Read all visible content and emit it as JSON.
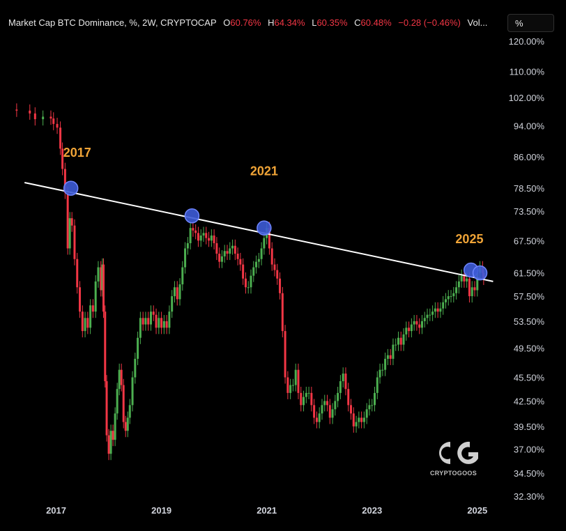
{
  "header": {
    "title": "Market Cap BTC Dominance, %, 2W, CRYPTOCAP",
    "o_label": "O",
    "o_value": "60.76%",
    "h_label": "H",
    "h_value": "64.34%",
    "l_label": "L",
    "l_value": "60.35%",
    "c_label": "C",
    "c_value": "60.48%",
    "change": "−0.28 (−0.46%)",
    "vol": "Vol..."
  },
  "unit_selector": "%",
  "logo": {
    "text": "CRYPTOGOOS"
  },
  "colors": {
    "up": "#4caf50",
    "down": "#f23645",
    "trendline": "#ffffff",
    "marker": "#3d5bd6",
    "annotation": "#f0a437"
  },
  "chart_data": {
    "type": "candlestick",
    "interval": "2W",
    "y_scale": "log",
    "yticks": [
      "120.00%",
      "110.00%",
      "102.00%",
      "94.00%",
      "86.00%",
      "78.50%",
      "73.50%",
      "67.50%",
      "61.50%",
      "57.50%",
      "53.50%",
      "49.50%",
      "45.50%",
      "42.50%",
      "39.50%",
      "37.00%",
      "34.50%",
      "32.30%"
    ],
    "ytick_values": [
      120,
      110,
      102,
      94,
      86,
      78.5,
      73.5,
      67.5,
      61.5,
      57.5,
      53.5,
      49.5,
      45.5,
      42.5,
      39.5,
      37,
      34.5,
      32.3
    ],
    "xticks": [
      "2017",
      "2019",
      "2021",
      "2023",
      "2025"
    ],
    "xtick_years": [
      2017,
      2019,
      2021,
      2023,
      2025
    ],
    "x_range": [
      2016.0,
      2025.4
    ],
    "ylim": [
      32,
      125
    ],
    "series": [
      {
        "values": [
          [
            2016.0,
            98.5
          ],
          [
            2016.25,
            98.2
          ],
          [
            2016.5,
            97.4
          ],
          [
            2016.6,
            95.8
          ],
          [
            2016.75,
            96.5
          ],
          [
            2016.9,
            96.0
          ],
          [
            2016.95,
            94.5
          ],
          [
            2017.02,
            93.5
          ],
          [
            2017.08,
            88.0
          ],
          [
            2017.12,
            83.0
          ],
          [
            2017.17,
            77.5
          ],
          [
            2017.22,
            66.0
          ],
          [
            2017.26,
            72.0
          ],
          [
            2017.3,
            70.5
          ],
          [
            2017.35,
            64.0
          ],
          [
            2017.4,
            59.0
          ],
          [
            2017.45,
            55.0
          ],
          [
            2017.5,
            52.0
          ],
          [
            2017.55,
            54.0
          ],
          [
            2017.6,
            52.5
          ],
          [
            2017.65,
            56.0
          ],
          [
            2017.7,
            55.0
          ],
          [
            2017.75,
            60.0
          ],
          [
            2017.8,
            62.5
          ],
          [
            2017.85,
            58.5
          ],
          [
            2017.88,
            63.0
          ],
          [
            2017.9,
            55.0
          ],
          [
            2017.93,
            45.0
          ],
          [
            2017.96,
            38.5
          ],
          [
            2018.0,
            36.5
          ],
          [
            2018.04,
            39.0
          ],
          [
            2018.08,
            38.0
          ],
          [
            2018.12,
            41.0
          ],
          [
            2018.16,
            44.0
          ],
          [
            2018.2,
            46.5
          ],
          [
            2018.24,
            44.5
          ],
          [
            2018.28,
            40.0
          ],
          [
            2018.32,
            39.0
          ],
          [
            2018.36,
            40.5
          ],
          [
            2018.4,
            42.0
          ],
          [
            2018.45,
            45.5
          ],
          [
            2018.5,
            48.0
          ],
          [
            2018.55,
            51.0
          ],
          [
            2018.6,
            54.0
          ],
          [
            2018.65,
            53.0
          ],
          [
            2018.7,
            54.0
          ],
          [
            2018.75,
            53.0
          ],
          [
            2018.8,
            55.0
          ],
          [
            2018.85,
            54.5
          ],
          [
            2018.9,
            52.5
          ],
          [
            2018.95,
            54.0
          ],
          [
            2019.0,
            52.5
          ],
          [
            2019.05,
            53.5
          ],
          [
            2019.1,
            52.5
          ],
          [
            2019.15,
            55.0
          ],
          [
            2019.2,
            57.5
          ],
          [
            2019.25,
            59.0
          ],
          [
            2019.3,
            57.0
          ],
          [
            2019.35,
            59.5
          ],
          [
            2019.4,
            62.5
          ],
          [
            2019.45,
            66.0
          ],
          [
            2019.5,
            67.0
          ],
          [
            2019.55,
            70.0
          ],
          [
            2019.6,
            69.5
          ],
          [
            2019.65,
            69.0
          ],
          [
            2019.7,
            67.5
          ],
          [
            2019.75,
            68.5
          ],
          [
            2019.8,
            69.0
          ],
          [
            2019.85,
            68.0
          ],
          [
            2019.9,
            67.5
          ],
          [
            2019.95,
            68.5
          ],
          [
            2020.0,
            67.0
          ],
          [
            2020.05,
            65.0
          ],
          [
            2020.1,
            63.5
          ],
          [
            2020.15,
            64.5
          ],
          [
            2020.2,
            65.5
          ],
          [
            2020.25,
            65.0
          ],
          [
            2020.3,
            66.0
          ],
          [
            2020.35,
            66.5
          ],
          [
            2020.4,
            65.0
          ],
          [
            2020.45,
            64.0
          ],
          [
            2020.5,
            63.0
          ],
          [
            2020.55,
            60.5
          ],
          [
            2020.6,
            59.0
          ],
          [
            2020.65,
            59.0
          ],
          [
            2020.7,
            61.0
          ],
          [
            2020.75,
            62.5
          ],
          [
            2020.8,
            63.5
          ],
          [
            2020.85,
            64.0
          ],
          [
            2020.9,
            66.0
          ],
          [
            2020.95,
            68.0
          ],
          [
            2021.0,
            70.0
          ],
          [
            2021.05,
            66.0
          ],
          [
            2021.1,
            63.0
          ],
          [
            2021.15,
            62.0
          ],
          [
            2021.2,
            60.5
          ],
          [
            2021.25,
            58.0
          ],
          [
            2021.3,
            52.0
          ],
          [
            2021.35,
            45.5
          ],
          [
            2021.4,
            43.5
          ],
          [
            2021.45,
            44.5
          ],
          [
            2021.5,
            44.5
          ],
          [
            2021.55,
            46.5
          ],
          [
            2021.6,
            43.5
          ],
          [
            2021.65,
            42.0
          ],
          [
            2021.7,
            43.0
          ],
          [
            2021.75,
            43.5
          ],
          [
            2021.8,
            43.5
          ],
          [
            2021.85,
            42.0
          ],
          [
            2021.9,
            40.5
          ],
          [
            2021.95,
            40.0
          ],
          [
            2022.0,
            41.0
          ],
          [
            2022.05,
            42.0
          ],
          [
            2022.1,
            42.5
          ],
          [
            2022.15,
            42.0
          ],
          [
            2022.2,
            40.5
          ],
          [
            2022.25,
            41.5
          ],
          [
            2022.3,
            42.5
          ],
          [
            2022.35,
            43.5
          ],
          [
            2022.4,
            45.0
          ],
          [
            2022.45,
            46.0
          ],
          [
            2022.5,
            44.0
          ],
          [
            2022.55,
            42.0
          ],
          [
            2022.6,
            41.0
          ],
          [
            2022.65,
            39.5
          ],
          [
            2022.7,
            40.0
          ],
          [
            2022.75,
            40.5
          ],
          [
            2022.8,
            40.0
          ],
          [
            2022.85,
            40.5
          ],
          [
            2022.9,
            41.5
          ],
          [
            2022.95,
            42.0
          ],
          [
            2023.0,
            42.0
          ],
          [
            2023.05,
            43.5
          ],
          [
            2023.1,
            45.5
          ],
          [
            2023.15,
            46.5
          ],
          [
            2023.2,
            46.5
          ],
          [
            2023.25,
            48.0
          ],
          [
            2023.3,
            48.5
          ],
          [
            2023.35,
            48.0
          ],
          [
            2023.4,
            50.0
          ],
          [
            2023.45,
            50.0
          ],
          [
            2023.5,
            51.0
          ],
          [
            2023.55,
            50.0
          ],
          [
            2023.6,
            51.5
          ],
          [
            2023.65,
            52.5
          ],
          [
            2023.7,
            52.0
          ],
          [
            2023.75,
            53.0
          ],
          [
            2023.8,
            53.5
          ],
          [
            2023.85,
            53.0
          ],
          [
            2023.9,
            52.5
          ],
          [
            2023.95,
            53.5
          ],
          [
            2024.0,
            54.0
          ],
          [
            2024.05,
            54.5
          ],
          [
            2024.1,
            54.5
          ],
          [
            2024.15,
            55.0
          ],
          [
            2024.2,
            55.5
          ],
          [
            2024.25,
            55.0
          ],
          [
            2024.3,
            55.5
          ],
          [
            2024.35,
            56.5
          ],
          [
            2024.4,
            57.0
          ],
          [
            2024.45,
            57.5
          ],
          [
            2024.5,
            57.5
          ],
          [
            2024.55,
            58.0
          ],
          [
            2024.6,
            59.0
          ],
          [
            2024.65,
            60.0
          ],
          [
            2024.7,
            61.0
          ],
          [
            2024.75,
            60.0
          ],
          [
            2024.8,
            60.5
          ],
          [
            2024.85,
            57.5
          ],
          [
            2024.9,
            59.0
          ],
          [
            2024.95,
            58.5
          ],
          [
            2025.0,
            61.5
          ],
          [
            2025.05,
            62.5
          ],
          [
            2025.1,
            61.5
          ],
          [
            2025.12,
            60.48
          ]
        ]
      }
    ],
    "trendline": {
      "points": [
        [
          2016.4,
          79.8
        ],
        [
          2025.3,
          60.0
        ]
      ]
    },
    "touch_points": [
      [
        2017.28,
        78.5
      ],
      [
        2019.58,
        72.5
      ],
      [
        2020.95,
        70.0
      ],
      [
        2024.88,
        62.0
      ],
      [
        2025.05,
        61.5
      ]
    ],
    "annotations": [
      {
        "text": "2017",
        "x": 2017.4,
        "y": 86.0
      },
      {
        "text": "2021",
        "x": 2020.95,
        "y": 81.5
      },
      {
        "text": "2025",
        "x": 2024.85,
        "y": 67.0
      }
    ]
  }
}
